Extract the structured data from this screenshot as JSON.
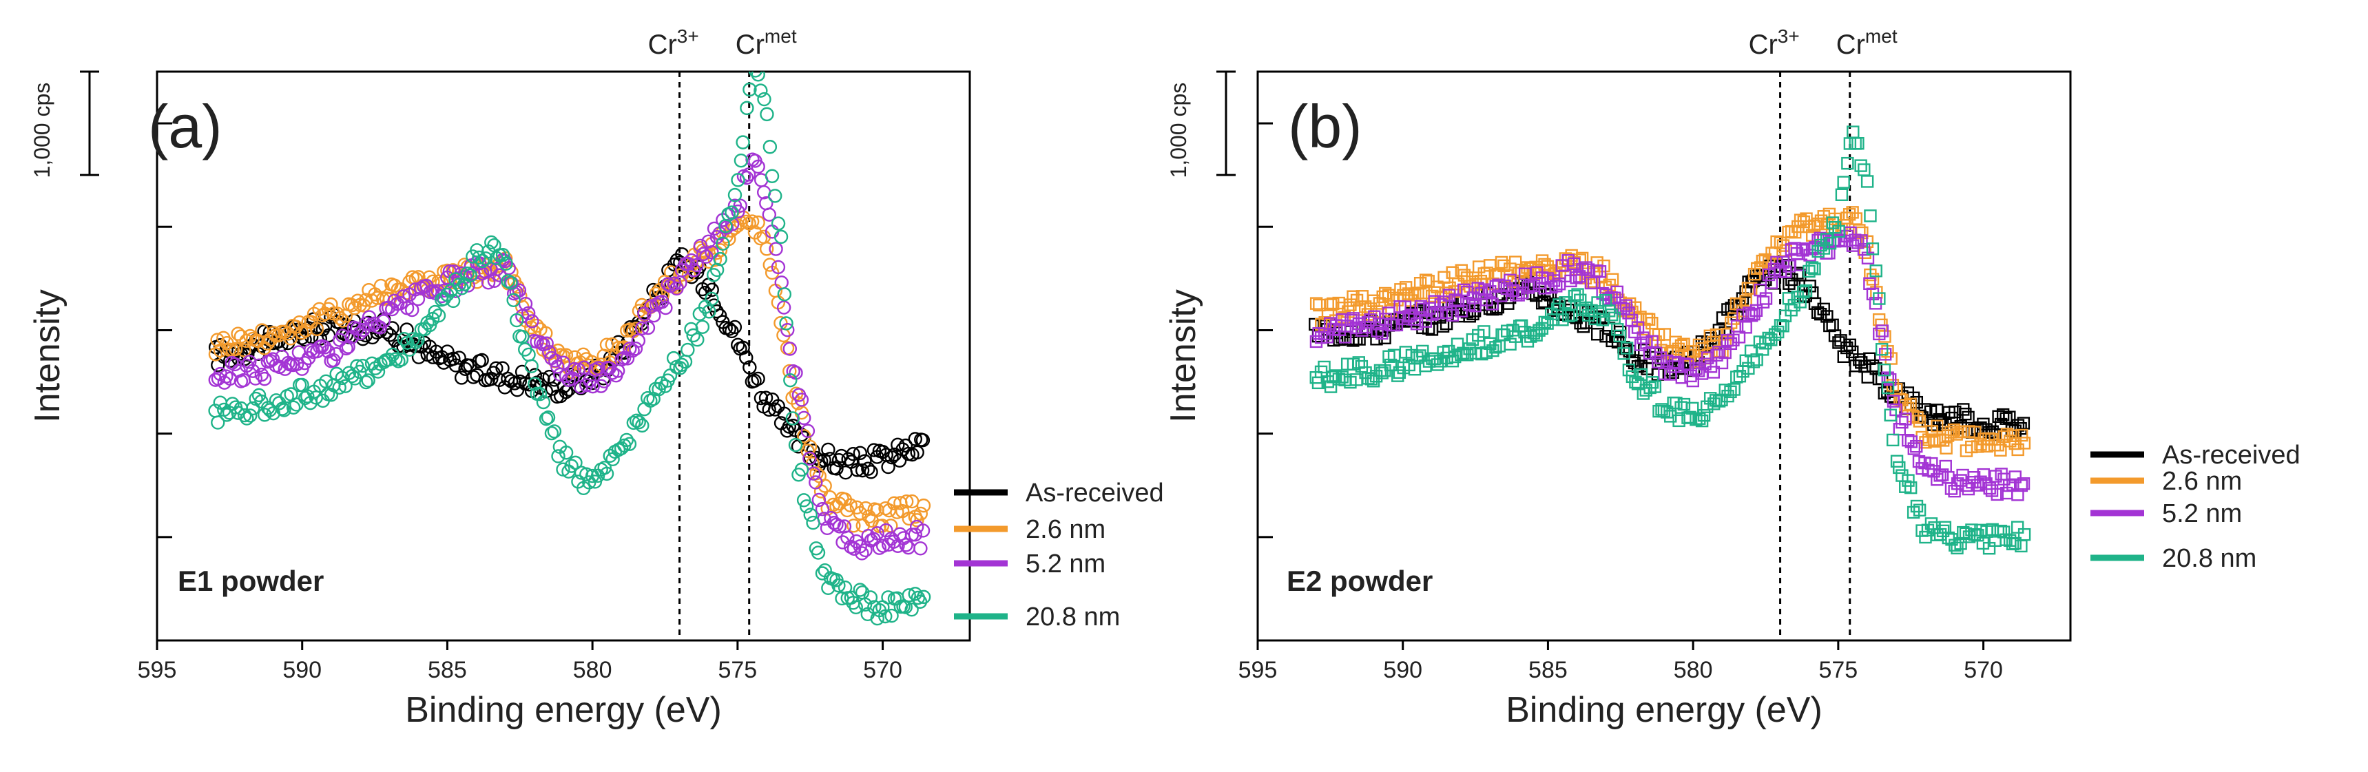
{
  "figure": {
    "panels": 2
  },
  "annotations": {
    "scale_bar_label": "1,000 cps",
    "cr3_base": "Cr",
    "cr3_sup": "3+",
    "crmet_base": "Cr",
    "crmet_sup": "met"
  },
  "legend_entries": [
    {
      "label": "As-received",
      "color": "#000000"
    },
    {
      "label": "2.6 nm",
      "color": "#f39a2c"
    },
    {
      "label": "5.2 nm",
      "color": "#a334d4"
    },
    {
      "label": "20.8 nm",
      "color": "#1fb389"
    }
  ],
  "chart_data": [
    {
      "type": "scatter",
      "panel_label": "(a)",
      "sample_label": "E1 powder",
      "sample_color": "#6d5ce6",
      "marker": "circle",
      "xlabel": "Binding energy (eV)",
      "ylabel": "Intensity",
      "xlim": [
        595,
        567
      ],
      "ylim": [
        0,
        5500
      ],
      "xticks": [
        595,
        590,
        585,
        580,
        575,
        570
      ],
      "scale_bar_cps": 1000,
      "reference_lines": [
        {
          "label": "Cr3+",
          "x": 577.0
        },
        {
          "label": "Cr met",
          "x": 574.6
        }
      ],
      "series": [
        {
          "name": "As-received",
          "color": "#000000",
          "x": [
            593,
            591,
            589,
            587,
            585.5,
            584.5,
            583,
            581,
            579.5,
            578,
            577,
            576,
            575,
            574,
            573,
            572,
            571,
            570,
            569,
            568.5
          ],
          "y": [
            2750,
            2900,
            3050,
            3000,
            2750,
            2650,
            2550,
            2450,
            2650,
            3250,
            3650,
            3450,
            2900,
            2300,
            1950,
            1750,
            1700,
            1750,
            1850,
            1900
          ]
        },
        {
          "name": "2.6 nm",
          "color": "#f39a2c",
          "x": [
            593,
            591,
            589,
            587,
            585,
            584,
            583,
            582,
            581,
            580,
            579,
            578,
            577,
            576,
            575,
            574.5,
            574,
            573,
            572,
            571,
            570,
            569,
            568.5
          ],
          "y": [
            2850,
            2950,
            3150,
            3400,
            3500,
            3550,
            3600,
            3000,
            2700,
            2650,
            2850,
            3300,
            3550,
            3750,
            3950,
            4100,
            3800,
            2300,
            1400,
            1200,
            1200,
            1250,
            1250
          ]
        },
        {
          "name": "5.2 nm",
          "color": "#a334d4",
          "x": [
            593,
            591,
            589,
            587,
            585,
            584,
            583,
            582,
            581,
            580,
            579,
            578,
            577,
            576,
            575,
            574.5,
            574,
            573,
            572,
            571,
            570,
            569,
            568.5
          ],
          "y": [
            2550,
            2650,
            2800,
            3150,
            3450,
            3550,
            3600,
            3000,
            2600,
            2500,
            2700,
            3150,
            3500,
            3800,
            4200,
            4650,
            4300,
            2500,
            1200,
            950,
            950,
            1000,
            1000
          ]
        },
        {
          "name": "20.8 nm",
          "color": "#1fb389",
          "x": [
            593,
            591,
            589,
            587,
            585.5,
            584,
            583.5,
            583,
            582,
            581,
            580,
            579,
            578,
            577,
            576,
            575,
            574.5,
            574,
            573.5,
            573,
            572,
            571,
            570,
            569,
            568.5
          ],
          "y": [
            2200,
            2300,
            2450,
            2700,
            3100,
            3700,
            3800,
            3600,
            2450,
            1750,
            1500,
            1800,
            2300,
            2700,
            3200,
            4400,
            5650,
            5000,
            3800,
            1800,
            600,
            400,
            300,
            350,
            350
          ]
        }
      ]
    },
    {
      "type": "scatter",
      "panel_label": "(b)",
      "sample_label": "E2 powder",
      "sample_color": "#f07878",
      "marker": "square",
      "xlabel": "Binding energy (eV)",
      "ylabel": "Intensity",
      "xlim": [
        595,
        567
      ],
      "ylim": [
        0,
        5500
      ],
      "xticks": [
        595,
        590,
        585,
        580,
        575,
        570
      ],
      "scale_bar_cps": 1000,
      "reference_lines": [
        {
          "label": "Cr3+",
          "x": 577.0
        },
        {
          "label": "Cr met",
          "x": 574.6
        }
      ],
      "series": [
        {
          "name": "As-received",
          "color": "#000000",
          "x": [
            593,
            591,
            589,
            587,
            585.5,
            584,
            583,
            582,
            581,
            580,
            579,
            578,
            577,
            576,
            575,
            574,
            573,
            572,
            571,
            570,
            569,
            568.5
          ],
          "y": [
            3000,
            3000,
            3100,
            3300,
            3400,
            3150,
            3000,
            2750,
            2650,
            2700,
            3050,
            3400,
            3600,
            3350,
            2850,
            2650,
            2400,
            2200,
            2150,
            2100,
            2100,
            2100
          ]
        },
        {
          "name": "2.6 nm",
          "color": "#f39a2c",
          "x": [
            593,
            591,
            589,
            587,
            585,
            584,
            583,
            582,
            581,
            580,
            579,
            578,
            577,
            576,
            575,
            574.5,
            574,
            573.5,
            573,
            572,
            571,
            570,
            569,
            568.5
          ],
          "y": [
            3150,
            3250,
            3400,
            3550,
            3600,
            3650,
            3500,
            3150,
            2850,
            2750,
            2900,
            3400,
            3850,
            4000,
            4050,
            4050,
            3800,
            3000,
            2400,
            2000,
            1950,
            1900,
            1900,
            1900
          ]
        },
        {
          "name": "5.2 nm",
          "color": "#a334d4",
          "x": [
            593,
            591,
            589,
            587,
            585,
            584,
            583,
            582,
            581,
            580,
            579,
            578,
            577,
            576,
            575,
            574.5,
            574,
            573.5,
            573,
            572,
            571,
            570,
            569,
            568.5
          ],
          "y": [
            2950,
            3050,
            3200,
            3350,
            3500,
            3600,
            3450,
            3000,
            2650,
            2550,
            2750,
            3200,
            3600,
            3800,
            3850,
            3900,
            3700,
            2900,
            2200,
            1700,
            1550,
            1500,
            1500,
            1500
          ]
        },
        {
          "name": "20.8 nm",
          "color": "#1fb389",
          "x": [
            593,
            591,
            589,
            587,
            585.5,
            584,
            583,
            582,
            581,
            580,
            579,
            578,
            577,
            576,
            575,
            574.5,
            574,
            573.5,
            573,
            572,
            571,
            570,
            569,
            568.5
          ],
          "y": [
            2550,
            2600,
            2750,
            2900,
            3000,
            3250,
            3200,
            2600,
            2250,
            2150,
            2350,
            2700,
            3100,
            3500,
            4050,
            4950,
            4500,
            2900,
            1700,
            1100,
            1000,
            1000,
            1000,
            1000
          ]
        }
      ]
    }
  ]
}
